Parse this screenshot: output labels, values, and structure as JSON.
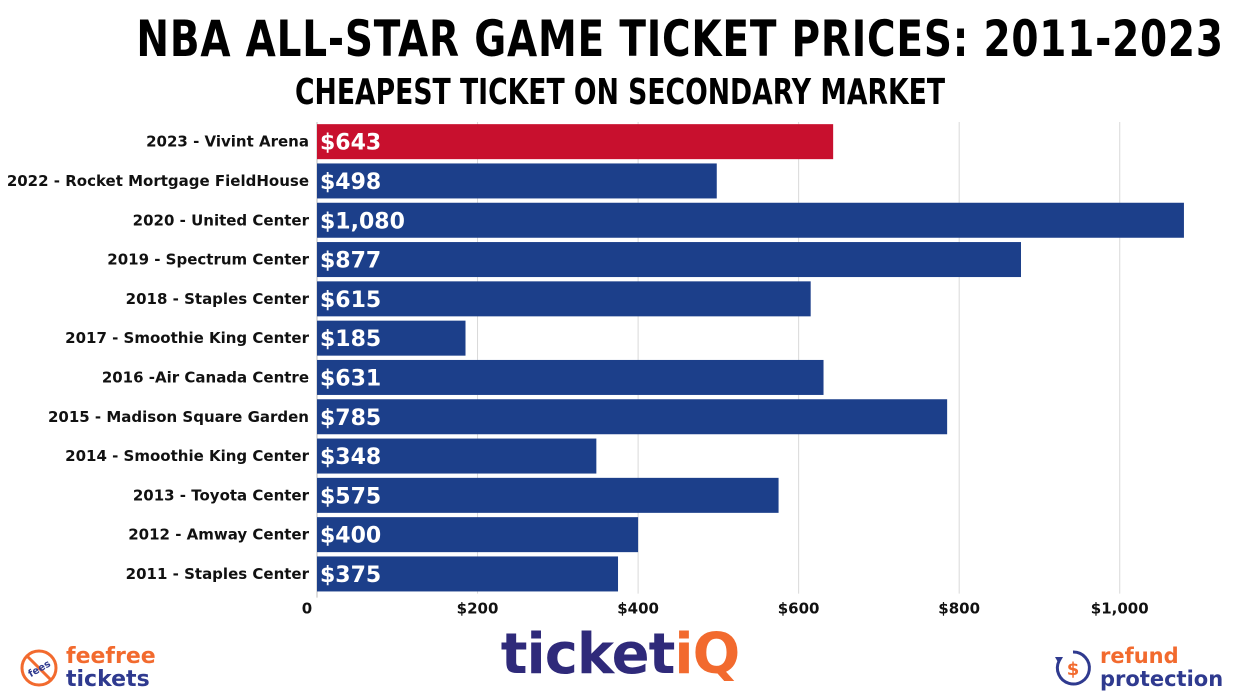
{
  "chart_data": {
    "type": "bar",
    "orientation": "horizontal",
    "title": "NBA ALL-STAR GAME TICKET PRICES: 2011-2023",
    "subtitle": "CHEAPEST TICKET ON SECONDARY MARKET",
    "categories": [
      "2023 - Vivint Arena",
      "2022 - Rocket Mortgage FieldHouse",
      "2020 - United Center",
      "2019 - Spectrum Center",
      "2018 - Staples Center",
      "2017 - Smoothie King Center",
      "2016 -Air Canada Centre",
      "2015 - Madison Square Garden",
      "2014 - Smoothie King Center",
      "2013 - Toyota Center",
      "2012 - Amway Center",
      "2011 - Staples Center"
    ],
    "values": [
      643,
      498,
      1080,
      877,
      615,
      185,
      631,
      785,
      348,
      575,
      400,
      375
    ],
    "value_labels": [
      "$643",
      "$498",
      "$1,080",
      "$877",
      "$615",
      "$185",
      "$631",
      "$785",
      "$348",
      "$575",
      "$400",
      "$375"
    ],
    "xticks": [
      0,
      200,
      400,
      600,
      800,
      1000
    ],
    "xtick_labels": [
      "0",
      "$200",
      "$400",
      "$600",
      "$800",
      "$1,000"
    ],
    "xlim": [
      0,
      1100
    ],
    "grid": true,
    "colors": {
      "highlight": "#c8102e",
      "default": "#1c3f8a",
      "grid": "#d9d9d9"
    },
    "highlight_index": 0
  },
  "footer": {
    "feefree_line1": "feefree",
    "feefree_line2": "tickets",
    "feefree_badge": "fees",
    "brand_main": "ticket",
    "brand_accent": "iQ",
    "refund_line1": "refund",
    "refund_line2": "protection",
    "refund_icon": "$"
  }
}
